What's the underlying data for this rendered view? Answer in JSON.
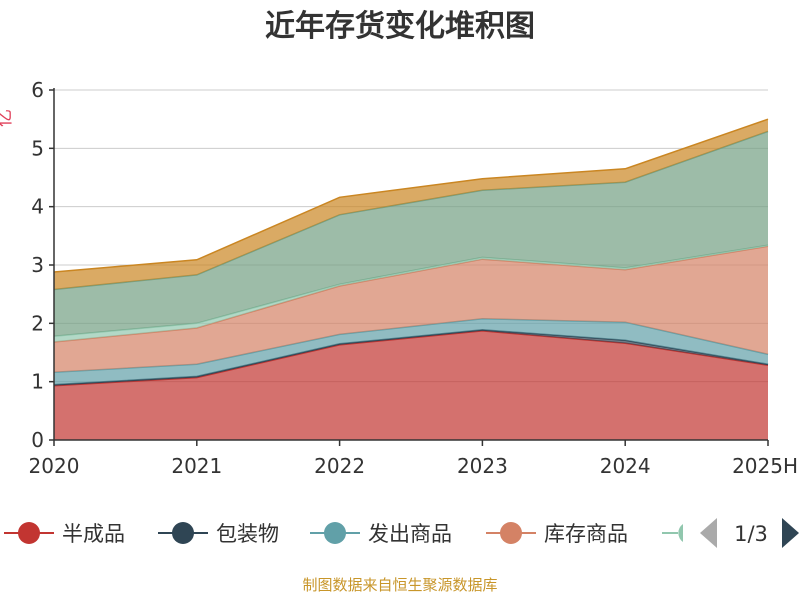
{
  "chart_data": {
    "type": "area",
    "stacked": true,
    "title": "近年存货变化堆积图",
    "ylabel": "亿",
    "categories": [
      "2020",
      "2021",
      "2022",
      "2023",
      "2024",
      "2025H"
    ],
    "ylim": [
      0,
      6
    ],
    "yticks": [
      0,
      1,
      2,
      3,
      4,
      5,
      6
    ],
    "grid": true,
    "series": [
      {
        "name": "半成品",
        "color": "#c23531",
        "values": [
          0.93,
          1.07,
          1.63,
          1.87,
          1.66,
          1.28
        ]
      },
      {
        "name": "包装物",
        "color": "#2f4554",
        "values": [
          0.02,
          0.02,
          0.02,
          0.02,
          0.05,
          0.02
        ]
      },
      {
        "name": "发出商品",
        "color": "#61a0a8",
        "values": [
          0.21,
          0.21,
          0.16,
          0.19,
          0.31,
          0.17
        ]
      },
      {
        "name": "库存商品",
        "color": "#d48265",
        "values": [
          0.52,
          0.62,
          0.83,
          1.02,
          0.9,
          1.85
        ]
      },
      {
        "name": "",
        "color": "#91c7ae",
        "values": [
          0.1,
          0.08,
          0.03,
          0.03,
          0.03,
          0.02
        ]
      },
      {
        "name": "",
        "color": "#749f83",
        "values": [
          0.8,
          0.83,
          1.19,
          1.15,
          1.47,
          1.95
        ]
      },
      {
        "name": "",
        "color": "#ca8622",
        "values": [
          0.3,
          0.26,
          0.3,
          0.2,
          0.23,
          0.21
        ]
      }
    ]
  },
  "legend": {
    "items": [
      "半成品",
      "包装物",
      "发出商品",
      "库存商品"
    ],
    "page_indicator": "1/3"
  },
  "source_note": "制图数据来自恒生聚源数据库"
}
